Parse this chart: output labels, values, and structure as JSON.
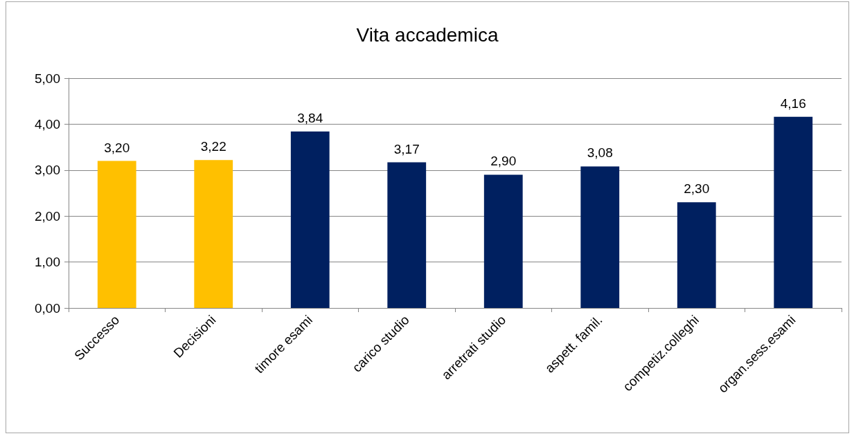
{
  "chart_data": {
    "type": "bar",
    "title": "Vita accademica",
    "categories": [
      "Successo",
      "Decisioni",
      "timore esami",
      "carico studio",
      "arretrati studio",
      "aspett. famil.",
      "competiz.colleghi",
      "organ.sess.esami"
    ],
    "values": [
      3.2,
      3.22,
      3.84,
      3.17,
      2.9,
      3.08,
      2.3,
      4.16
    ],
    "colors": [
      "#ffc000",
      "#ffc000",
      "#002060",
      "#002060",
      "#002060",
      "#002060",
      "#002060",
      "#002060"
    ],
    "value_labels": [
      "3,20",
      "3,22",
      "3,84",
      "3,17",
      "2,90",
      "3,08",
      "2,30",
      "4,16"
    ],
    "ylim": [
      0,
      5
    ],
    "yticks": [
      {
        "value": 0,
        "label": "0,00"
      },
      {
        "value": 1,
        "label": "1,00"
      },
      {
        "value": 2,
        "label": "2,00"
      },
      {
        "value": 3,
        "label": "3,00"
      },
      {
        "value": 4,
        "label": "4,00"
      },
      {
        "value": 5,
        "label": "5,00"
      }
    ],
    "grid": "y"
  }
}
